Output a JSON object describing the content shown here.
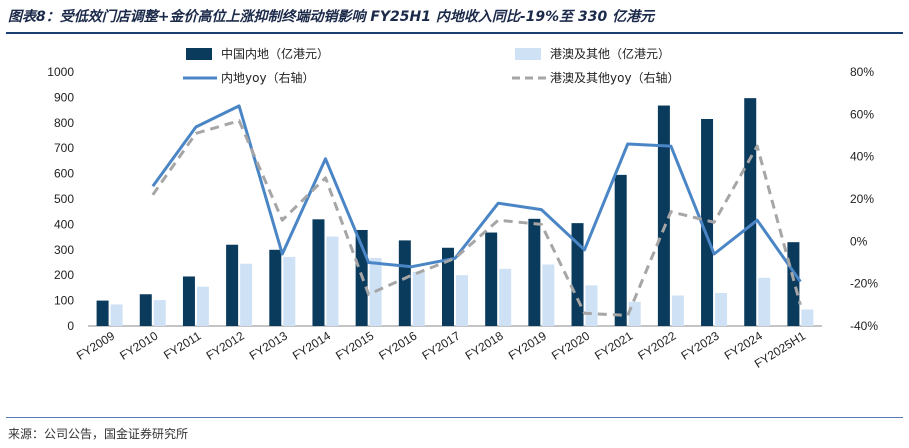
{
  "header": {
    "title": "图表8：受低效门店调整+金价高位上涨抑制终端动销影响 FY25H1 内地收入同比-19%至 330 亿港元"
  },
  "footer": {
    "source": "来源：公司公告，国金证券研究所"
  },
  "chart_data": {
    "type": "bar",
    "categories": [
      "FY2009",
      "FY2010",
      "FY2011",
      "FY2012",
      "FY2013",
      "FY2014",
      "FY2015",
      "FY2016",
      "FY2017",
      "FY2018",
      "FY2019",
      "FY2020",
      "FY2021",
      "FY2022",
      "FY2023",
      "FY2024",
      "FY2025H1"
    ],
    "series": [
      {
        "name": "中国内地（亿港元）",
        "type": "bar",
        "axis": "left",
        "color": "#0a3a5c",
        "values": [
          100,
          125,
          195,
          320,
          300,
          420,
          378,
          337,
          308,
          368,
          422,
          405,
          595,
          868,
          815,
          897,
          330
        ]
      },
      {
        "name": "港澳及其他（亿港元）",
        "type": "bar",
        "axis": "left",
        "color": "#cfe2f5",
        "values": [
          85,
          102,
          155,
          245,
          272,
          352,
          268,
          213,
          200,
          225,
          242,
          160,
          95,
          120,
          130,
          190,
          65
        ]
      },
      {
        "name": "内地yoy（右轴）",
        "type": "line",
        "axis": "right",
        "color": "#4a86c5",
        "values": [
          null,
          26,
          54,
          64,
          -6,
          39,
          -10,
          -12,
          -8,
          18,
          15,
          -4,
          46,
          45,
          -6,
          10,
          -19
        ]
      },
      {
        "name": "港澳及其他yoy（右轴）",
        "type": "line",
        "dashed": true,
        "axis": "right",
        "color": "#a6a6a6",
        "values": [
          null,
          22,
          51,
          57,
          10,
          30,
          -25,
          -16,
          -8,
          10,
          8,
          -34,
          -35,
          14,
          9,
          45,
          -30
        ]
      }
    ],
    "ylim_left": [
      0,
      1000
    ],
    "ylim_right": [
      -40,
      80
    ],
    "yticks_left": [
      "0",
      "100",
      "200",
      "300",
      "400",
      "500",
      "600",
      "700",
      "800",
      "900",
      "1000"
    ],
    "yticks_right": [
      "-40%",
      "-20%",
      "0%",
      "20%",
      "40%",
      "60%",
      "80%"
    ],
    "grid": false,
    "legend_position": "top"
  }
}
